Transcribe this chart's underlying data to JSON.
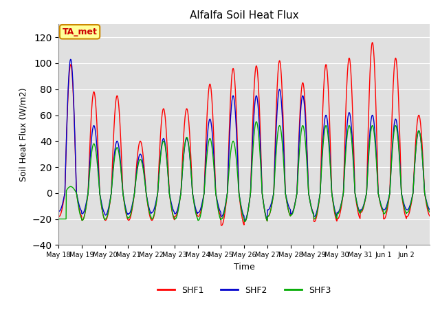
{
  "title": "Alfalfa Soil Heat Flux",
  "ylabel": "Soil Heat Flux (W/m2)",
  "xlabel": "Time",
  "ylim": [
    -40,
    130
  ],
  "yticks": [
    -40,
    -20,
    0,
    20,
    40,
    60,
    80,
    100,
    120
  ],
  "background_color": "#e0e0e0",
  "colors": {
    "SHF1": "#ff0000",
    "SHF2": "#0000cc",
    "SHF3": "#00aa00"
  },
  "annotation_text": "TA_met",
  "annotation_color": "#cc0000",
  "annotation_bg": "#ffff99",
  "num_days": 16,
  "start_day": 18,
  "shf1_peaks": [
    99,
    78,
    75,
    40,
    65,
    65,
    84,
    96,
    98,
    102,
    85,
    99,
    104,
    116,
    104,
    60
  ],
  "shf1_troughs": [
    -18,
    -21,
    -21,
    -21,
    -21,
    -18,
    -18,
    -25,
    -22,
    -18,
    -16,
    -22,
    -20,
    -15,
    -20,
    -18
  ],
  "shf2_peaks": [
    103,
    52,
    40,
    30,
    42,
    42,
    57,
    75,
    75,
    80,
    75,
    60,
    62,
    60,
    57,
    48
  ],
  "shf2_troughs": [
    -14,
    -16,
    -17,
    -16,
    -15,
    -16,
    -15,
    -18,
    -21,
    -13,
    -16,
    -18,
    -15,
    -13,
    -13,
    -13
  ],
  "shf3_peaks": [
    5,
    38,
    35,
    26,
    40,
    43,
    42,
    40,
    55,
    52,
    52,
    52,
    52,
    52,
    52,
    48
  ],
  "shf3_troughs": [
    -20,
    -21,
    -20,
    -19,
    -20,
    -20,
    -21,
    -20,
    -22,
    -18,
    -17,
    -20,
    -16,
    -14,
    -16,
    -15
  ],
  "day_labels": [
    "May 18",
    "May 19",
    "May 20",
    "May 21",
    "May 22",
    "May 23",
    "May 24",
    "May 25",
    "May 26",
    "May 27",
    "May 28",
    "May 29",
    "May 30",
    "May 31",
    "Jun 1",
    "Jun 2"
  ]
}
